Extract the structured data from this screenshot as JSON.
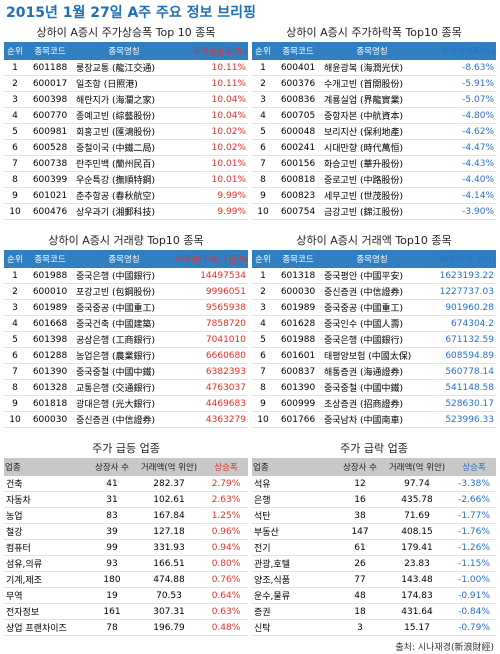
{
  "title": "2015년 1월 27일 A주 주요 정보 브리핑",
  "tables": [
    {
      "title": "상하이 A증시 주가상승폭 Top 10 종목",
      "columns": [
        "순위",
        "종목코드",
        "종목명칭",
        "주가상승폭(%)"
      ],
      "rows": [
        [
          "1",
          "601188",
          "룽장교통 (龍江交通)",
          "10.11%"
        ],
        [
          "2",
          "600017",
          "일조항 (日照港)",
          "10.11%"
        ],
        [
          "3",
          "600398",
          "해란지가 (海瀾之家)",
          "10.04%"
        ],
        [
          "4",
          "600770",
          "종예고빈 (綜藝股份)",
          "10.04%"
        ],
        [
          "5",
          "600981",
          "회홍고빈 (匯鴻股份)",
          "10.02%"
        ],
        [
          "6",
          "600528",
          "중철이국 (中鐵二局)",
          "10.02%"
        ],
        [
          "7",
          "600738",
          "란주민백 (蘭州民百)",
          "10.01%"
        ],
        [
          "8",
          "600399",
          "우순특강 (撫順特鋼)",
          "10.01%"
        ],
        [
          "9",
          "601021",
          "춘추항공 (春秋航空)",
          "9.99%"
        ],
        [
          "10",
          "600476",
          "상우과기 (湘郵科技)",
          "9.99%"
        ]
      ]
    },
    {
      "title": "상하이 A증시 주가하락폭 Top10 종목",
      "columns": [
        "순위",
        "종목코드",
        "종목명칭",
        "주가하락폭(%)"
      ],
      "rows": [
        [
          "1",
          "600401",
          "해윤광복 (海潤光伏)",
          "-8.63%"
        ],
        [
          "2",
          "600376",
          "수개고빈 (首開股份)",
          "-5.91%"
        ],
        [
          "3",
          "600836",
          "계룡실업 (界龍實業)",
          "-5.07%"
        ],
        [
          "4",
          "600705",
          "중항자본 (中航資本)",
          "-4.80%"
        ],
        [
          "5",
          "600048",
          "보리지산 (保利地產)",
          "-4.62%"
        ],
        [
          "6",
          "600241",
          "시대만향 (時代萬恒)",
          "-4.47%"
        ],
        [
          "7",
          "600156",
          "화승고빈 (華升股份)",
          "-4.43%"
        ],
        [
          "8",
          "600818",
          "중로고빈 (中路股份)",
          "-4.40%"
        ],
        [
          "9",
          "600823",
          "세무고빈 (世茂股份)",
          "-4.14%"
        ],
        [
          "10",
          "600754",
          "금강고빈 (錦江股份)",
          "-3.90%"
        ]
      ]
    },
    {
      "title": "상하이 A증시 거래량 Top10 종목",
      "columns": [
        "순위",
        "종목코드",
        "종목명칭",
        "거래량(주식, 1단위=100주)"
      ],
      "rows": [
        [
          "1",
          "601988",
          "중국은행 (中國銀行)",
          "14497534"
        ],
        [
          "2",
          "600010",
          "포강고빈 (包鋼股份)",
          "9996051"
        ],
        [
          "3",
          "601989",
          "중국중공 (中國重工)",
          "9565938"
        ],
        [
          "4",
          "601668",
          "중국건축 (中國建築)",
          "7858720"
        ],
        [
          "5",
          "601398",
          "공상은행 (工商銀行)",
          "7041010"
        ],
        [
          "6",
          "601288",
          "농업은행 (農業銀行)",
          "6660680"
        ],
        [
          "7",
          "601390",
          "중국중철 (中國中鐵)",
          "6382393"
        ],
        [
          "8",
          "601328",
          "교통은행 (交通銀行)",
          "4763037"
        ],
        [
          "9",
          "601818",
          "광대은행 (光大銀行)",
          "4469683"
        ],
        [
          "10",
          "600030",
          "중신증권 (中信證券)",
          "4363279"
        ]
      ]
    },
    {
      "title": "상하이 A증시 거래액 Top10 종목",
      "columns": [
        "순위",
        "종목코드",
        "종목명칭",
        "거래액(만 위안)"
      ],
      "rows": [
        [
          "1",
          "601318",
          "중국평안 (中國平安)",
          "1623193.22"
        ],
        [
          "2",
          "600030",
          "중신증권 (中信證券)",
          "1227737.03"
        ],
        [
          "3",
          "601989",
          "중국중공 (中國重工)",
          "901960.28"
        ],
        [
          "4",
          "601628",
          "중국인수 (中國人壽)",
          "674304.2"
        ],
        [
          "5",
          "601988",
          "중국은행 (中國銀行)",
          "671132.59"
        ],
        [
          "6",
          "601601",
          "태평양보험 (中國太保)",
          "608594.89"
        ],
        [
          "7",
          "600837",
          "해통증권 (海通證券)",
          "560778.14"
        ],
        [
          "8",
          "601390",
          "중국중철 (中國中鐵)",
          "541148.58"
        ],
        [
          "9",
          "600999",
          "초상증권 (招商證券)",
          "528630.17"
        ],
        [
          "10",
          "601766",
          "중국남차 (中國南車)",
          "523996.33"
        ]
      ]
    },
    {
      "title": "주가 급등 업종",
      "columns": [
        "업종",
        "상장사 수",
        "거래액(억 위안)",
        "상승폭"
      ],
      "rows": [
        [
          "건축",
          "41",
          "282.37",
          "2.79%"
        ],
        [
          "자동차",
          "31",
          "102.61",
          "2.63%"
        ],
        [
          "농업",
          "83",
          "167.84",
          "1.25%"
        ],
        [
          "철강",
          "39",
          "127.18",
          "0.96%"
        ],
        [
          "컴퓨터",
          "99",
          "331.93",
          "0.94%"
        ],
        [
          "섬유,의류",
          "93",
          "166.51",
          "0.80%"
        ],
        [
          "기계,제조",
          "180",
          "474.88",
          "0.76%"
        ],
        [
          "무역",
          "19",
          "70.53",
          "0.64%"
        ],
        [
          "전자정보",
          "161",
          "307.31",
          "0.63%"
        ],
        [
          "상업 프랜차이즈",
          "78",
          "196.79",
          "0.48%"
        ]
      ]
    },
    {
      "title": "주가 급락 업종",
      "columns": [
        "업종",
        "상장사 수",
        "거래액(억 위안)",
        "상승폭"
      ],
      "rows": [
        [
          "석유",
          "12",
          "97.74",
          "-3.38%"
        ],
        [
          "은행",
          "16",
          "435.78",
          "-2.66%"
        ],
        [
          "석탄",
          "38",
          "71.69",
          "-1.77%"
        ],
        [
          "부동산",
          "147",
          "408.15",
          "-1.76%"
        ],
        [
          "전기",
          "61",
          "179.41",
          "-1.26%"
        ],
        [
          "관광,호텔",
          "26",
          "23.83",
          "-1.15%"
        ],
        [
          "양조,식품",
          "77",
          "143.48",
          "-1.00%"
        ],
        [
          "운수,물류",
          "48",
          "174.83",
          "-0.91%"
        ],
        [
          "증권",
          "18",
          "431.64",
          "-0.84%"
        ],
        [
          "신탁",
          "3",
          "15.17",
          "-0.79%"
        ]
      ]
    }
  ],
  "source": "출처: 시나재경(新浪財經)"
}
